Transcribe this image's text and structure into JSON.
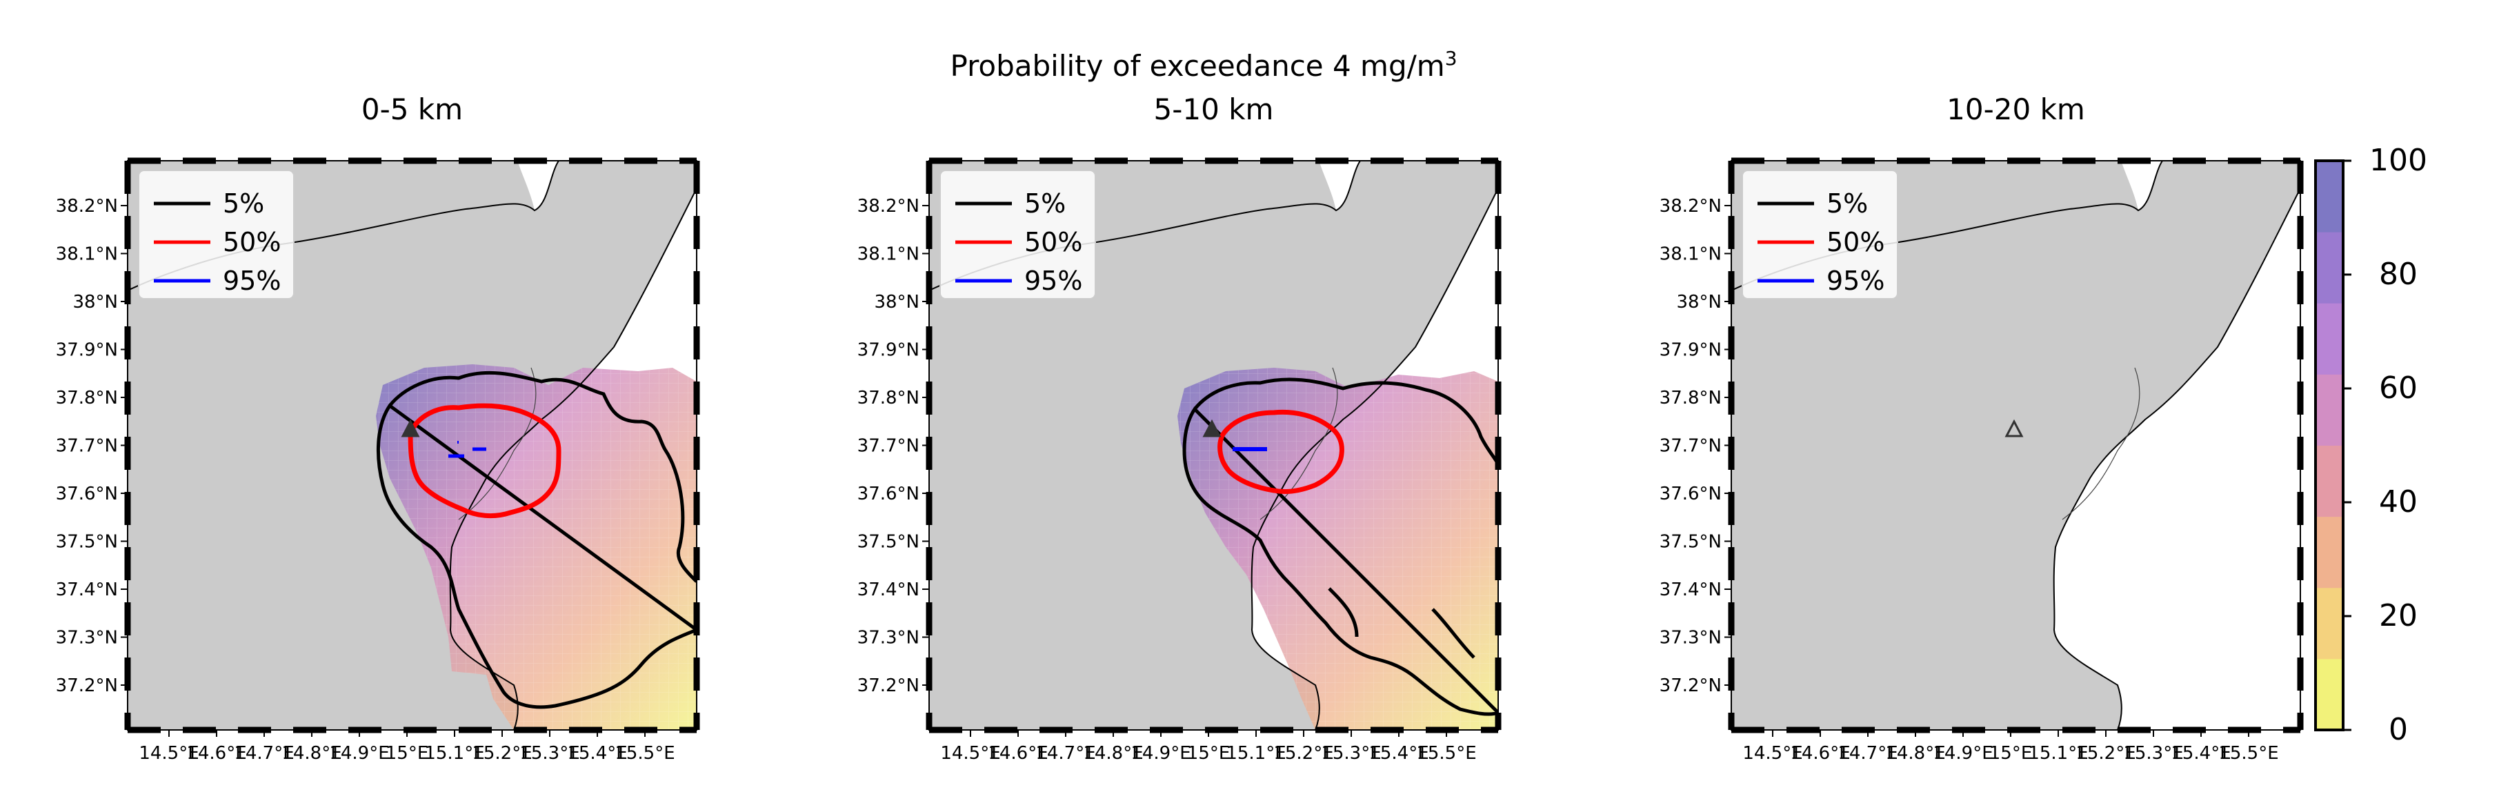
{
  "figure": {
    "title_line1": "Probability of exceedance 4 mg/m",
    "title_sup": "3"
  },
  "panels": [
    {
      "title": "0-5 km"
    },
    {
      "title": "5-10 km"
    },
    {
      "title": "10-20 km"
    }
  ],
  "axes": {
    "lat_labels": [
      "38.2°N",
      "38.1°N",
      "38°N",
      "37.9°N",
      "37.8°N",
      "37.7°N",
      "37.6°N",
      "37.5°N",
      "37.4°N",
      "37.3°N",
      "37.2°N"
    ],
    "lon_labels": [
      "14.5°E",
      "14.6°E",
      "14.7°E",
      "14.8°E",
      "14.9°E",
      "15°E",
      "15.1°E",
      "15.2°E",
      "15.3°E",
      "15.4°E",
      "15.5°E"
    ]
  },
  "legend": [
    {
      "label": "5%",
      "color": "#000000"
    },
    {
      "label": "50%",
      "color": "#ff0000"
    },
    {
      "label": "95%",
      "color": "#0000ff"
    }
  ],
  "colorbar": {
    "ticks": [
      "0",
      "20",
      "40",
      "60",
      "80",
      "100"
    ],
    "colors": [
      "#f2f27a",
      "#f4d27e",
      "#f0b28f",
      "#e49aa6",
      "#d28ec4",
      "#b884d6",
      "#9a7ad0",
      "#7e78c4"
    ]
  },
  "colors": {
    "land": "#cbcbcb",
    "sea": "#ffffff",
    "vent_marker": "#333333"
  }
}
